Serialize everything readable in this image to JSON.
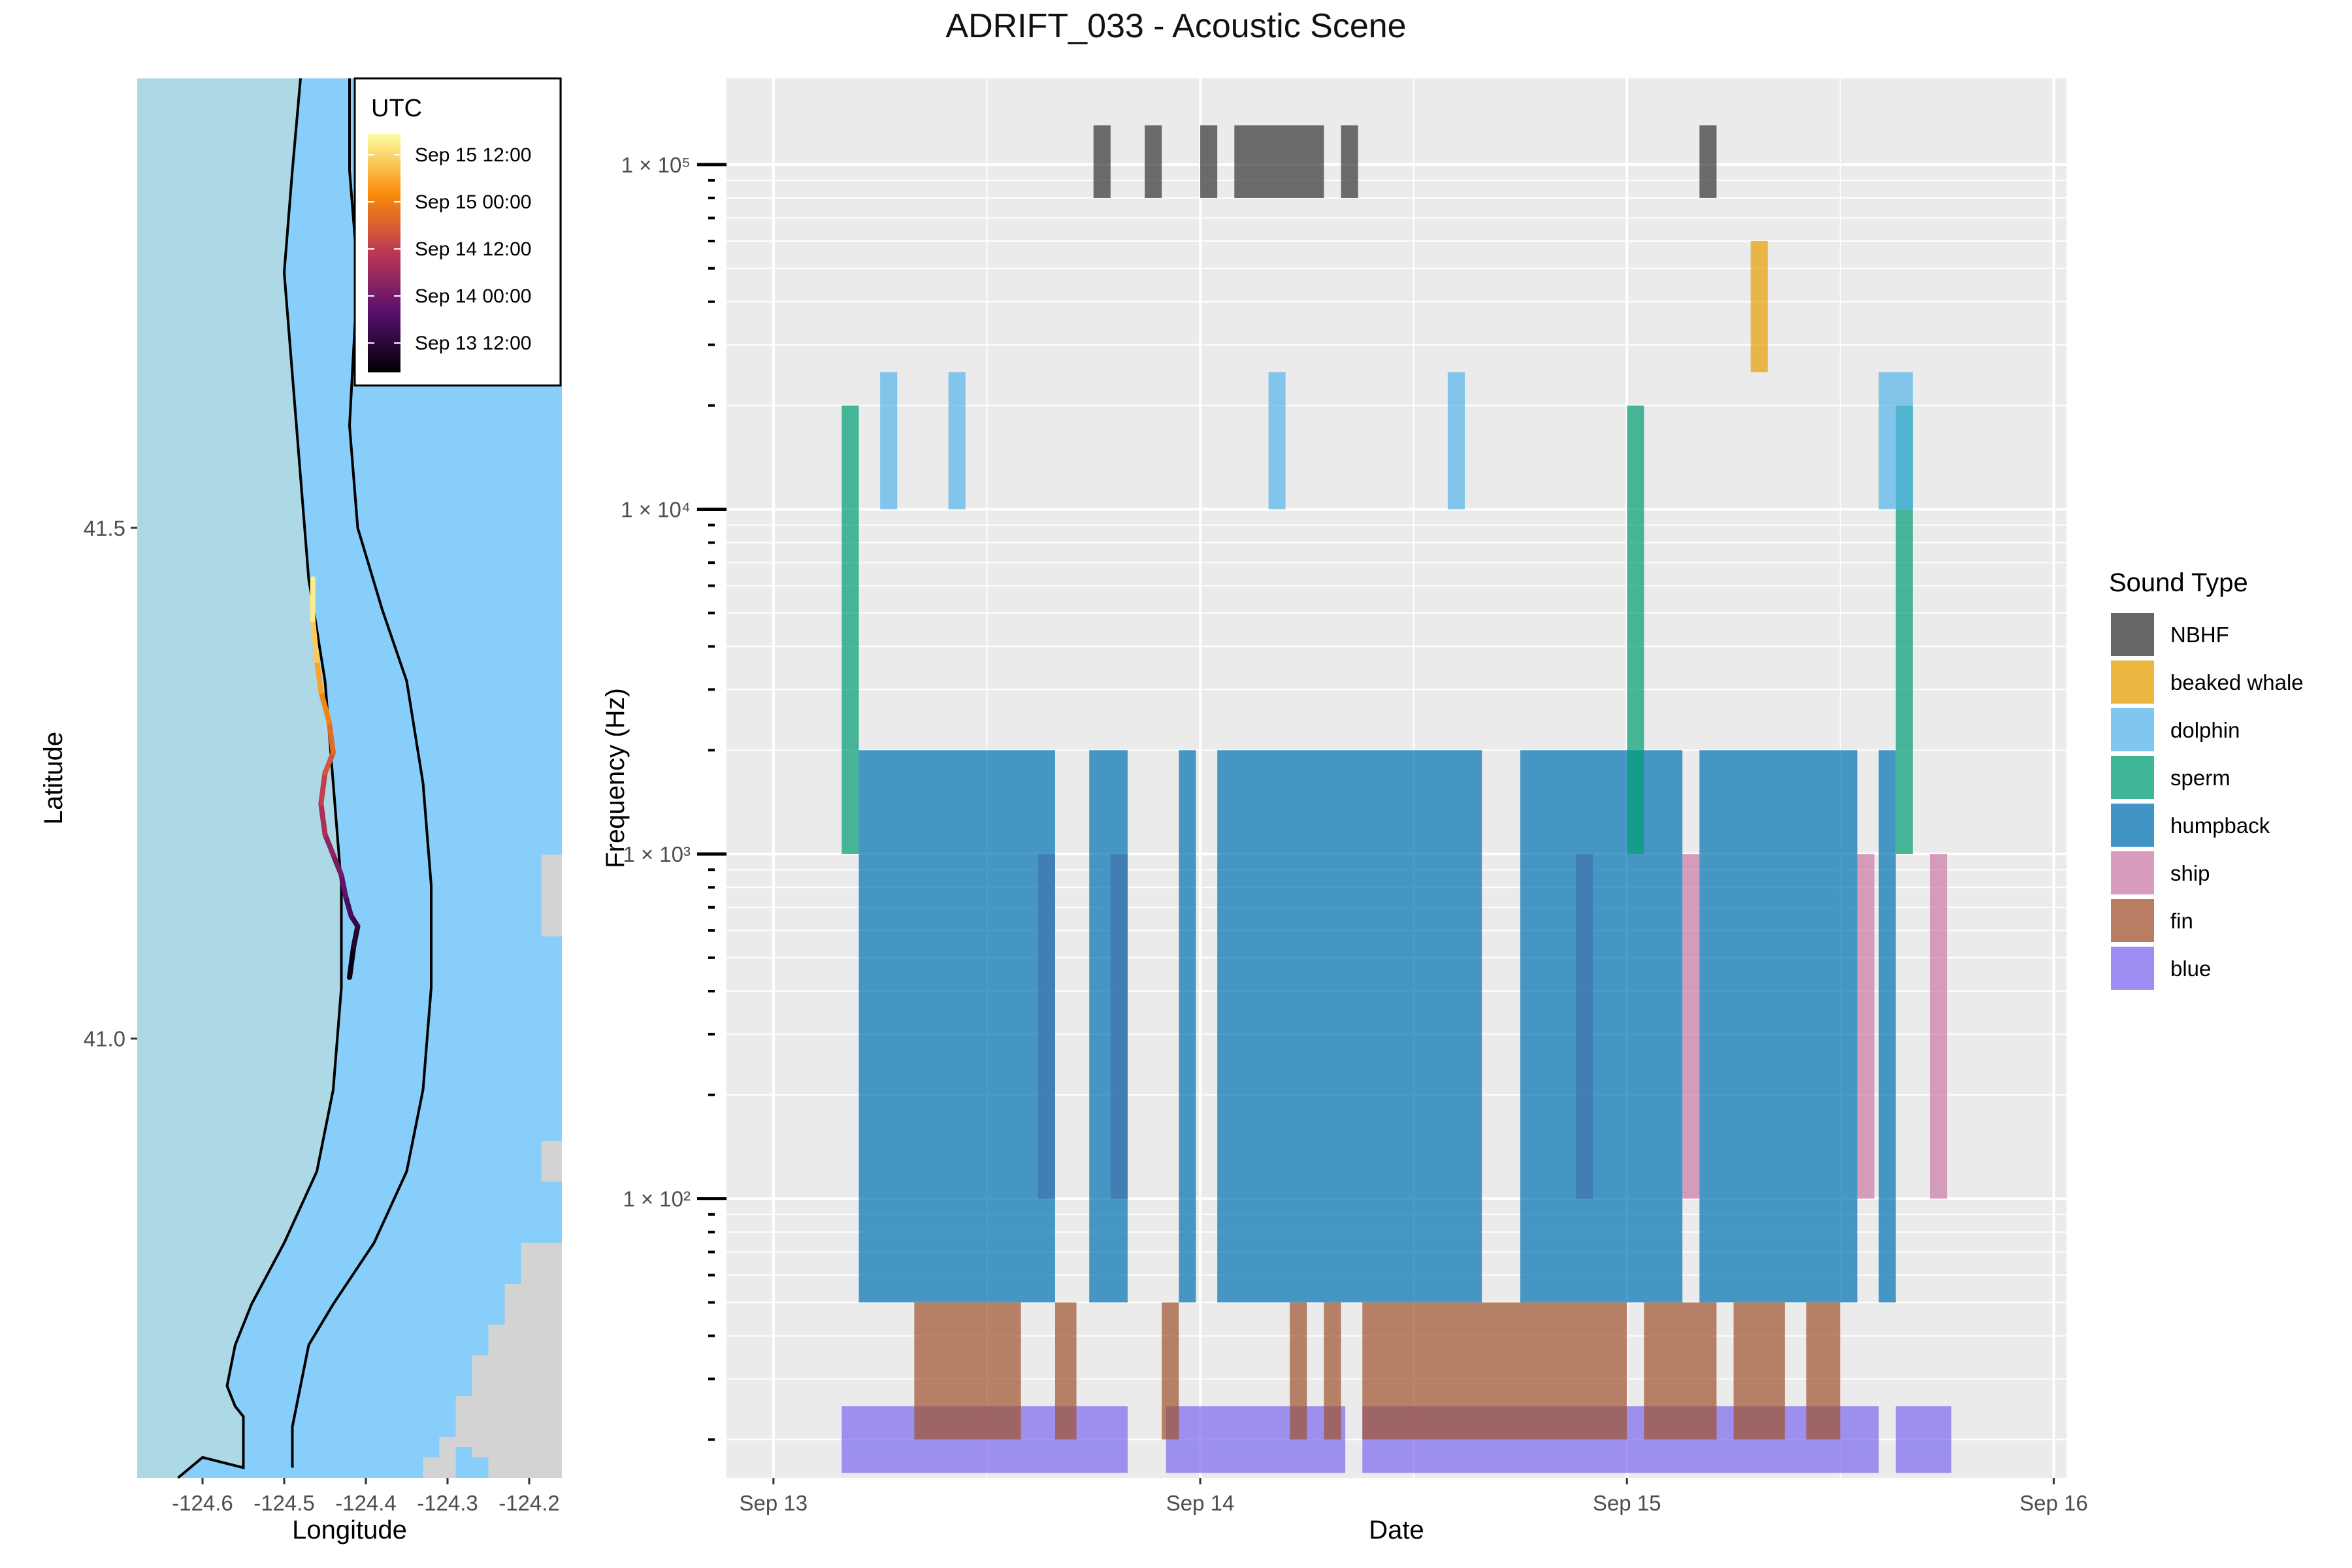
{
  "title": "ADRIFT_033 - Acoustic Scene",
  "colors": {
    "panel_bg": "#EBEBEB",
    "grid": "#FFFFFF",
    "ocean_land": "#ADD8E6",
    "ocean_deep": "#87CEFA",
    "land": "#D3D3D3"
  },
  "chart_data": [
    {
      "type": "line",
      "name": "map",
      "xlabel": "Longitude",
      "ylabel": "Latitude",
      "x_ticks": [
        "-124.6",
        "-124.5",
        "-124.4",
        "-124.3",
        "-124.2"
      ],
      "x_tick_values": [
        -124.6,
        -124.5,
        -124.4,
        -124.3,
        -124.2
      ],
      "y_ticks": [
        "41.0",
        "41.5"
      ],
      "y_tick_values": [
        41.0,
        41.5
      ],
      "xlim": [
        -124.68,
        -124.16
      ],
      "ylim": [
        40.57,
        41.94
      ],
      "grid": true,
      "legend": {
        "title": "UTC",
        "position": "top-right",
        "labels": [
          "Sep 15 12:00",
          "Sep 15 00:00",
          "Sep 14 12:00",
          "Sep 14 00:00",
          "Sep 13 12:00"
        ],
        "gradient": [
          "#FCFFA4",
          "#F98C0A",
          "#BC3754",
          "#57106E",
          "#000004"
        ]
      },
      "drift_track": {
        "lon": [
          -124.42,
          -124.415,
          -124.41,
          -124.418,
          -124.425,
          -124.43,
          -124.44,
          -124.45,
          -124.455,
          -124.45,
          -124.44,
          -124.445,
          -124.455,
          -124.46,
          -124.465,
          -124.465
        ],
        "lat": [
          41.06,
          41.09,
          41.11,
          41.12,
          41.14,
          41.16,
          41.18,
          41.2,
          41.23,
          41.26,
          41.28,
          41.31,
          41.34,
          41.37,
          41.41,
          41.45
        ],
        "utc_fraction": [
          0.0,
          0.07,
          0.13,
          0.18,
          0.24,
          0.3,
          0.36,
          0.42,
          0.49,
          0.56,
          0.62,
          0.69,
          0.76,
          0.84,
          0.92,
          1.0
        ]
      },
      "contours": [
        {
          "lon": [
            -124.48,
            -124.49,
            -124.5,
            -124.49,
            -124.48,
            -124.47,
            -124.45,
            -124.44,
            -124.43,
            -124.43,
            -124.44,
            -124.46,
            -124.5,
            -124.54,
            -124.56,
            -124.57,
            -124.56,
            -124.55,
            -124.55,
            -124.55,
            -124.6,
            -124.63
          ],
          "lat": [
            41.94,
            41.85,
            41.75,
            41.65,
            41.55,
            41.45,
            41.35,
            41.25,
            41.15,
            41.05,
            40.95,
            40.87,
            40.8,
            40.74,
            40.7,
            40.66,
            40.64,
            40.63,
            40.61,
            40.58,
            40.59,
            40.57
          ]
        },
        {
          "lon": [
            -124.42,
            -124.42,
            -124.41,
            -124.42,
            -124.41,
            -124.38,
            -124.35,
            -124.33,
            -124.32,
            -124.32,
            -124.33,
            -124.35,
            -124.39,
            -124.44,
            -124.47,
            -124.48,
            -124.49,
            -124.49
          ],
          "lat": [
            41.94,
            41.85,
            41.75,
            41.6,
            41.5,
            41.42,
            41.35,
            41.25,
            41.15,
            41.05,
            40.95,
            40.87,
            40.8,
            40.74,
            40.7,
            40.66,
            40.62,
            40.58
          ]
        }
      ]
    },
    {
      "type": "bar",
      "name": "acoustic-scene",
      "xlabel": "Date",
      "ylabel": "Frequency (Hz)",
      "x_ticks": [
        "Sep 13",
        "Sep 14",
        "Sep 15",
        "Sep 16"
      ],
      "x_tick_values": [
        0,
        1,
        2,
        3
      ],
      "xlim": [
        -0.11,
        3.03
      ],
      "ylim_log10": [
        1.19,
        5.25
      ],
      "y_ticks": [
        "1 × 10²",
        "1 × 10³",
        "1 × 10⁴",
        "1 × 10⁵"
      ],
      "y_tick_values": [
        100,
        1000,
        10000,
        100000
      ],
      "grid": true,
      "legend": {
        "title": "Sound Type",
        "position": "right",
        "entries": [
          {
            "name": "NBHF",
            "color": "#333333"
          },
          {
            "name": "beaked whale",
            "color": "#E69F00"
          },
          {
            "name": "dolphin",
            "color": "#56B4E9"
          },
          {
            "name": "sperm",
            "color": "#009E73"
          },
          {
            "name": "humpback",
            "color": "#0072B2"
          },
          {
            "name": "ship",
            "color": "#CC79A7"
          },
          {
            "name": "fin",
            "color": "#A0522D"
          },
          {
            "name": "blue",
            "color": "#7B68EE"
          }
        ]
      },
      "series": [
        {
          "name": "blue",
          "fmin": 16,
          "fmax": 25,
          "intervals": [
            [
              0.16,
              0.83
            ],
            [
              0.92,
              1.34
            ],
            [
              1.38,
              2.59
            ],
            [
              2.63,
              2.76
            ]
          ]
        },
        {
          "name": "fin",
          "fmin": 20,
          "fmax": 50,
          "intervals": [
            [
              0.33,
              0.58
            ],
            [
              0.66,
              0.71
            ],
            [
              0.91,
              0.95
            ],
            [
              1.21,
              1.25
            ],
            [
              1.29,
              1.33
            ],
            [
              1.38,
              2.0
            ],
            [
              2.04,
              2.21
            ],
            [
              2.25,
              2.37
            ],
            [
              2.42,
              2.5
            ]
          ]
        },
        {
          "name": "ship",
          "fmin": 100,
          "fmax": 1000,
          "intervals": [
            [
              0.62,
              0.66
            ],
            [
              0.79,
              0.83
            ],
            [
              1.88,
              1.92
            ],
            [
              2.13,
              2.17
            ],
            [
              2.54,
              2.58
            ],
            [
              2.71,
              2.75
            ]
          ]
        },
        {
          "name": "humpback",
          "fmin": 50,
          "fmax": 2000,
          "intervals": [
            [
              0.2,
              0.66
            ],
            [
              0.74,
              0.83
            ],
            [
              0.95,
              0.99
            ],
            [
              1.04,
              1.66
            ],
            [
              1.75,
              2.13
            ],
            [
              2.17,
              2.54
            ],
            [
              2.59,
              2.63
            ]
          ]
        },
        {
          "name": "sperm",
          "fmin": 1000,
          "fmax": 20000,
          "intervals": [
            [
              0.16,
              0.2
            ],
            [
              2.0,
              2.04
            ],
            [
              2.63,
              2.67
            ]
          ]
        },
        {
          "name": "dolphin",
          "fmin": 10000,
          "fmax": 25000,
          "intervals": [
            [
              0.25,
              0.29
            ],
            [
              0.41,
              0.45
            ],
            [
              1.16,
              1.2
            ],
            [
              1.58,
              1.62
            ],
            [
              2.59,
              2.67
            ]
          ]
        },
        {
          "name": "beaked whale",
          "fmin": 25000,
          "fmax": 60000,
          "intervals": [
            [
              2.29,
              2.33
            ]
          ]
        },
        {
          "name": "NBHF",
          "fmin": 80000,
          "fmax": 130000,
          "intervals": [
            [
              0.75,
              0.79
            ],
            [
              0.87,
              0.91
            ],
            [
              1.0,
              1.04
            ],
            [
              1.08,
              1.29
            ],
            [
              1.33,
              1.37
            ],
            [
              2.17,
              2.21
            ]
          ]
        }
      ]
    }
  ]
}
